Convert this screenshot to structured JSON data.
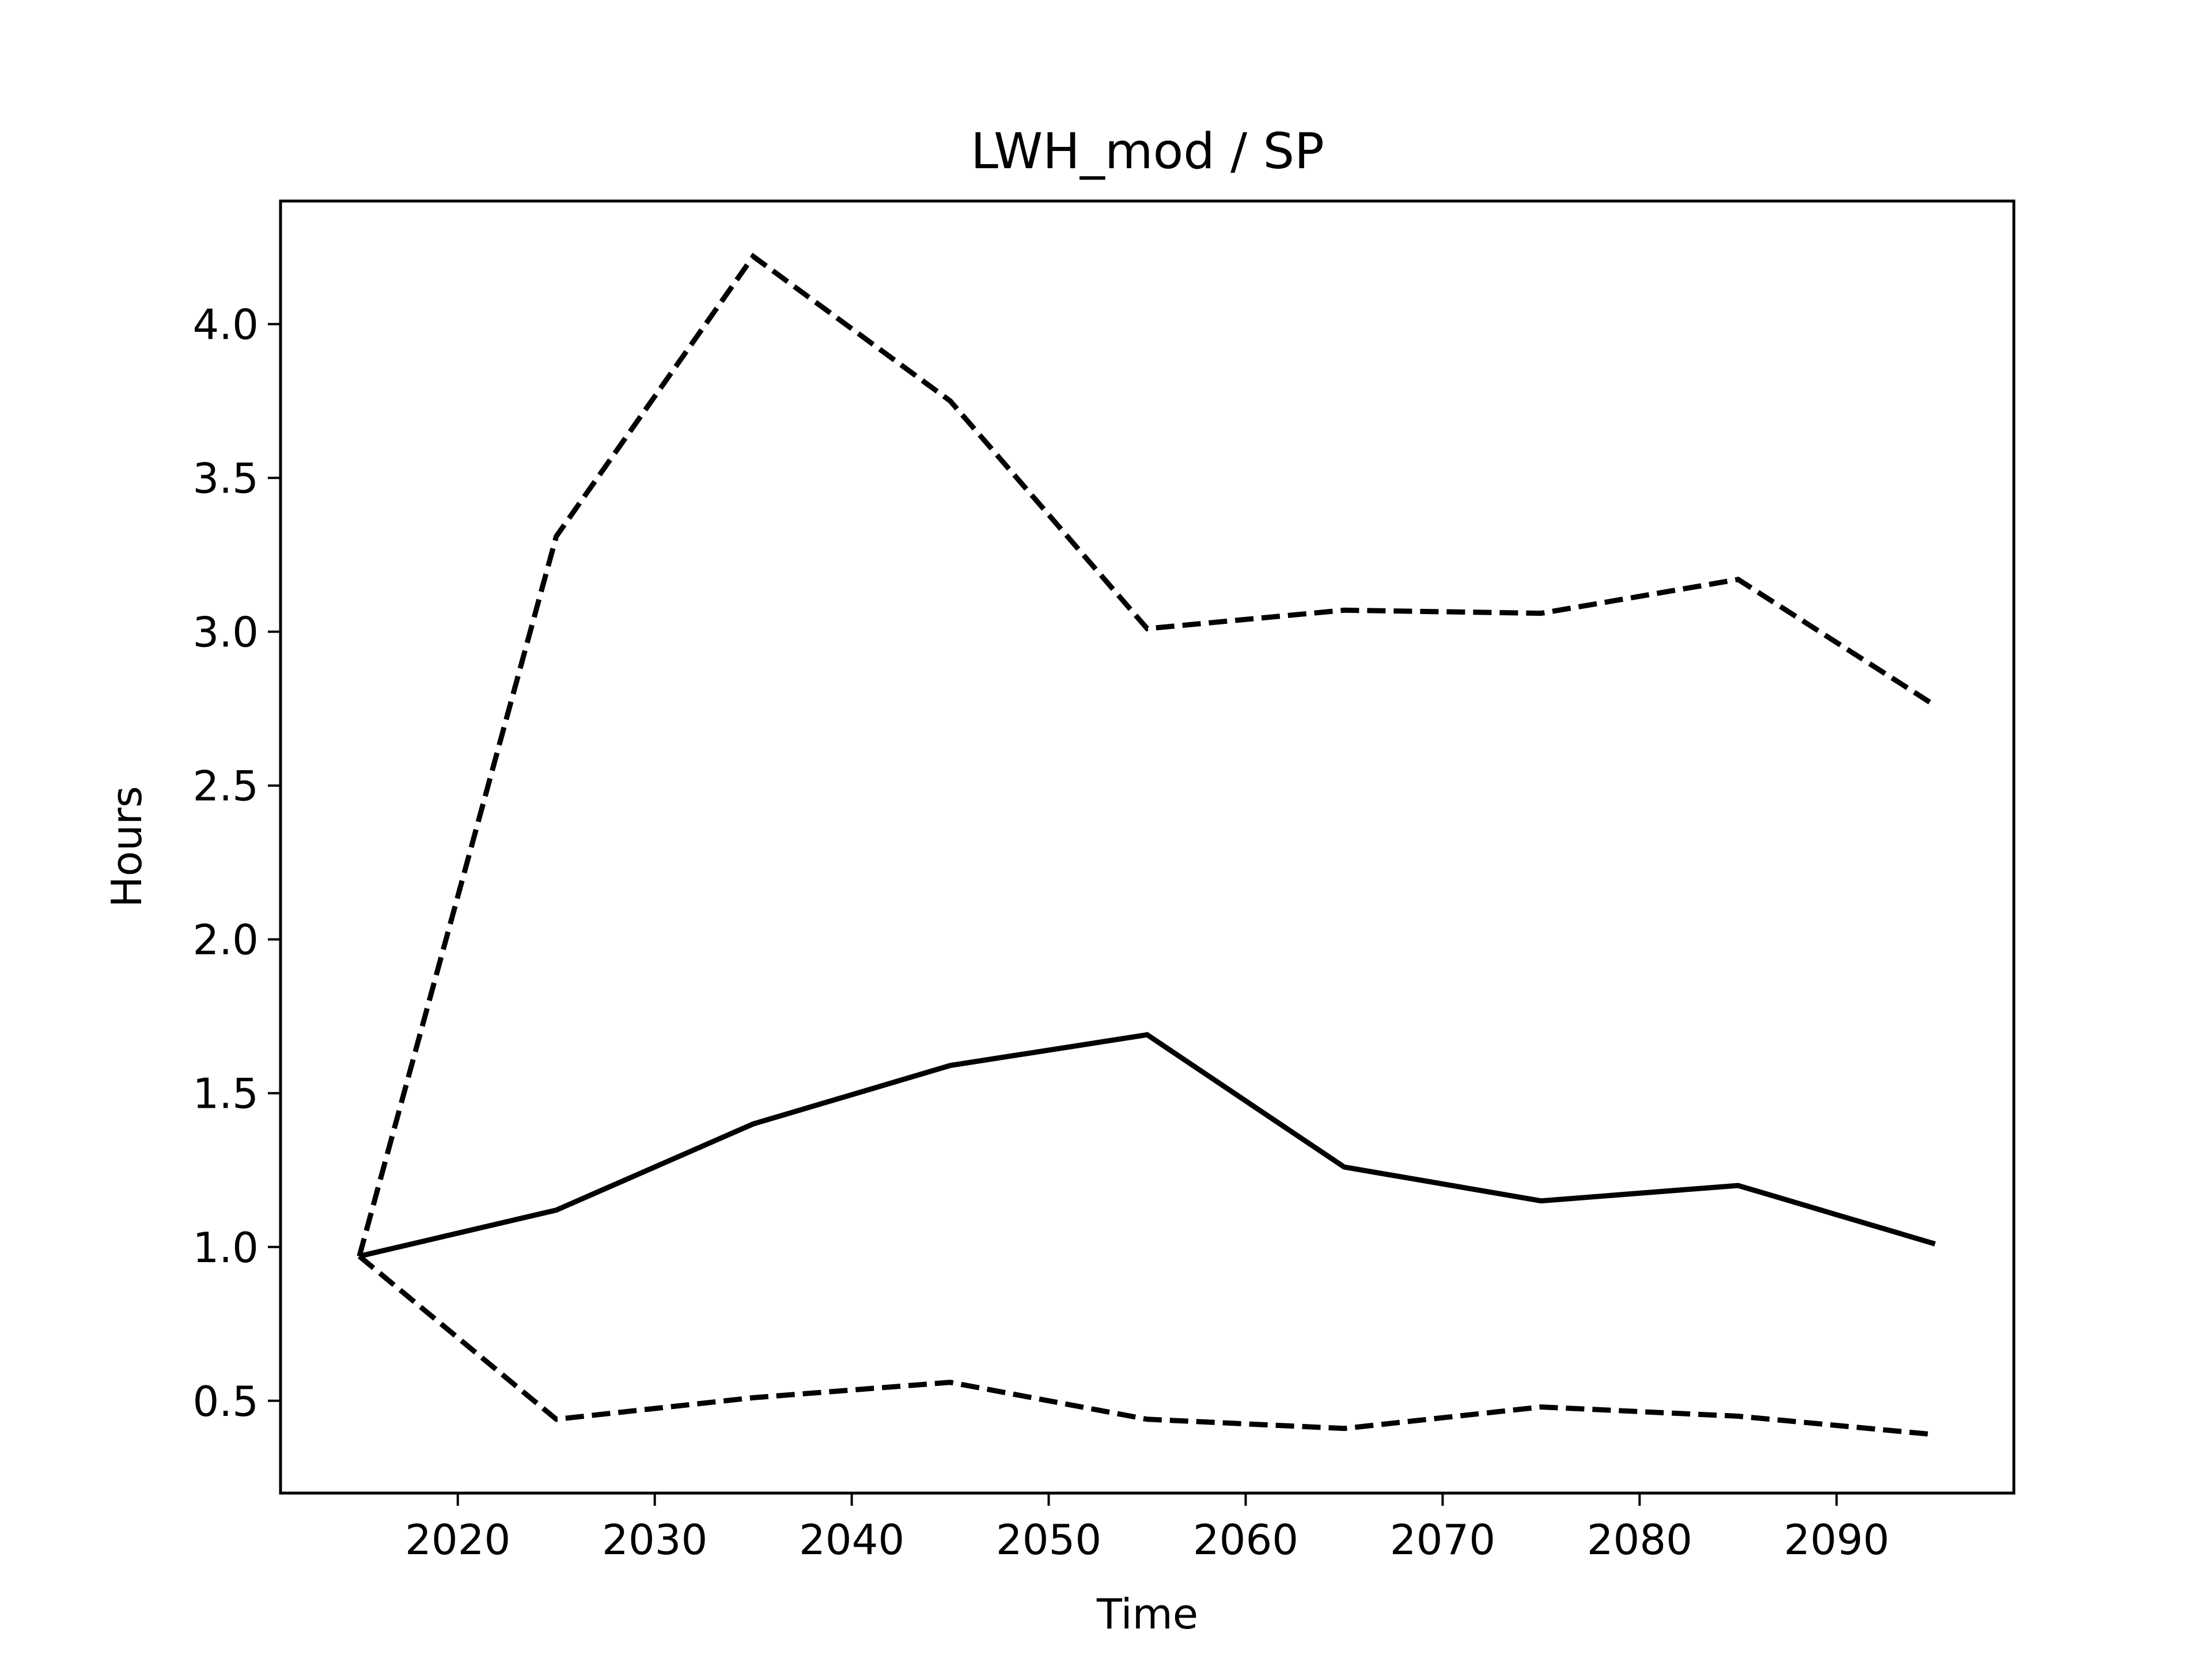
{
  "chart_data": {
    "type": "line",
    "title": "LWH_mod / SP",
    "xlabel": "Time",
    "ylabel": "Hours",
    "xlim": [
      2011,
      2099
    ],
    "ylim": [
      0.2,
      4.4
    ],
    "xticks": [
      2020,
      2030,
      2040,
      2050,
      2060,
      2070,
      2080,
      2090
    ],
    "yticks": [
      0.5,
      1.0,
      1.5,
      2.0,
      2.5,
      3.0,
      3.5,
      4.0
    ],
    "grid": false,
    "x": [
      2015,
      2025,
      2035,
      2045,
      2055,
      2065,
      2075,
      2085,
      2095
    ],
    "series": [
      {
        "style": "solid",
        "color": "#000000",
        "values": [
          0.97,
          1.12,
          1.4,
          1.59,
          1.69,
          1.26,
          1.15,
          1.2,
          1.01
        ]
      },
      {
        "style": "dashed",
        "color": "#000000",
        "values": [
          0.97,
          3.31,
          4.22,
          3.75,
          3.01,
          3.07,
          3.06,
          3.17,
          2.76
        ]
      },
      {
        "style": "dashed",
        "color": "#000000",
        "values": [
          0.97,
          0.44,
          0.51,
          0.56,
          0.44,
          0.41,
          0.48,
          0.45,
          0.39
        ]
      }
    ]
  }
}
